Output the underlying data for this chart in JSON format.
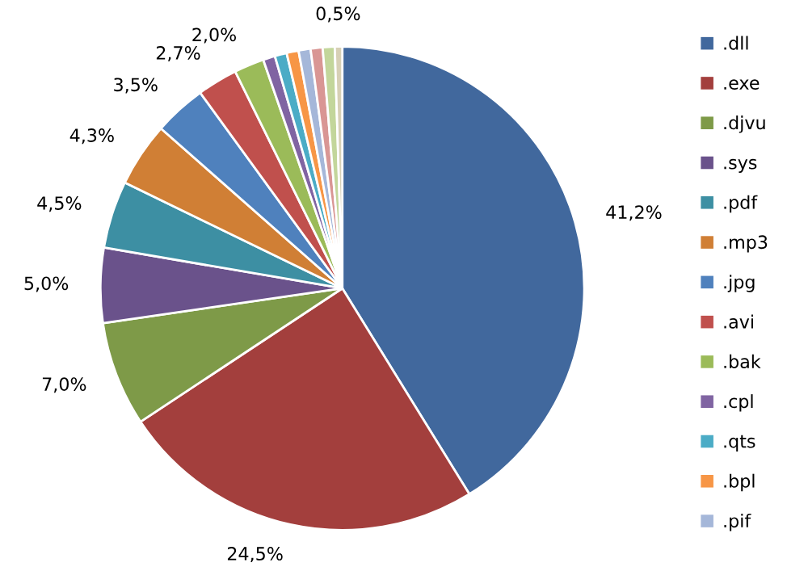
{
  "chart_data": {
    "type": "pie",
    "categories": [
      ".dll",
      ".exe",
      ".djvu",
      ".sys",
      ".pdf",
      ".mp3",
      ".jpg",
      ".avi",
      ".bak",
      ".cpl",
      ".qts",
      ".bpl",
      ".pif",
      null,
      null,
      null
    ],
    "values": [
      41.2,
      24.5,
      7.0,
      5.0,
      4.5,
      4.3,
      3.5,
      2.7,
      2.0,
      0.8,
      0.8,
      0.8,
      0.8,
      0.8,
      0.8,
      0.5
    ],
    "colors": [
      "#41689d",
      "#a33f3d",
      "#7e9a48",
      "#6a528b",
      "#3d8fa3",
      "#d07f35",
      "#4f81bd",
      "#c0504d",
      "#9bbb59",
      "#8064a2",
      "#4bacc6",
      "#f79646",
      "#a5b7d9",
      "#d99694",
      "#c3d69b",
      "#d7d0b5"
    ],
    "value_labels": [
      "41,2%",
      "24,5%",
      "7,0%",
      "5,0%",
      "4,5%",
      "4,3%",
      "3,5%",
      "2,7%",
      "2,0%",
      null,
      null,
      null,
      null,
      null,
      null,
      "0,5%"
    ],
    "legend": "right"
  }
}
